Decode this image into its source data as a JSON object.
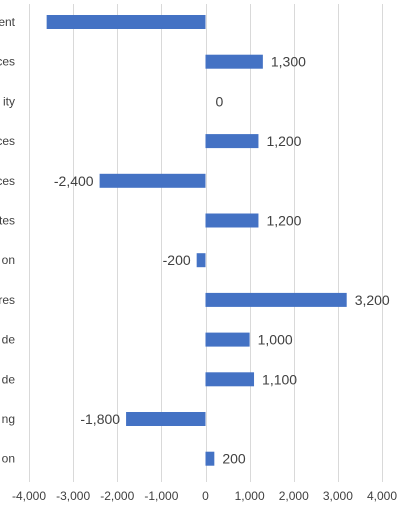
{
  "chart_data": {
    "type": "bar",
    "orientation": "horizontal",
    "categories": [
      "ent",
      "ces",
      "ity",
      "ces",
      "ces",
      "tes",
      "on",
      "res",
      "de",
      "de",
      "ng",
      "on"
    ],
    "values": [
      -3600,
      1300,
      0,
      1200,
      -2400,
      1200,
      -200,
      3200,
      1000,
      1100,
      -1800,
      200
    ],
    "data_labels": [
      "",
      "1,300",
      "0",
      "1,200",
      "-2,400",
      "1,200",
      "-200",
      "3,200",
      "1,000",
      "1,100",
      "-1,800",
      "200"
    ],
    "xlim": [
      -4000,
      4000
    ],
    "xticks": [
      -4000,
      -3000,
      -2000,
      -1000,
      0,
      1000,
      2000,
      3000,
      4000
    ],
    "xtick_labels": [
      "-4,000",
      "-3,000",
      "-2,000",
      "-1,000",
      "0",
      "1,000",
      "2,000",
      "3,000",
      "4,000"
    ],
    "grid": "vertical",
    "bar_color": "#4472c4",
    "grid_color": "#d9d9d9",
    "text_color": "#404040"
  }
}
